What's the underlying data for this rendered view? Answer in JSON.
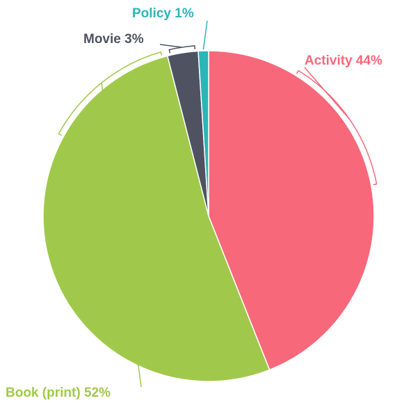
{
  "chart_data": {
    "type": "pie",
    "categories": [
      "Activity",
      "Book (print)",
      "Movie",
      "Policy"
    ],
    "values": [
      44,
      52,
      3,
      1
    ],
    "value_labels": [
      "44%",
      "52%",
      "3%",
      "1%"
    ],
    "colors": [
      "#f7687a",
      "#a0c94b",
      "#4f5361",
      "#2bb5b8"
    ]
  }
}
